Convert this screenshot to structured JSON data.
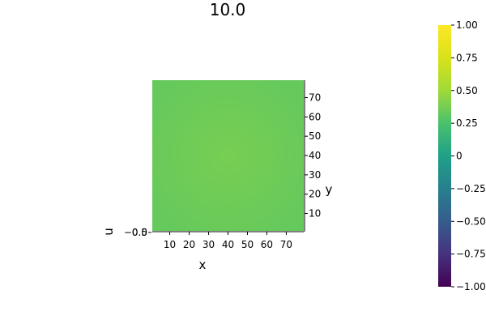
{
  "chart_data": {
    "type": "heatmap",
    "title": "10.0",
    "xlabel": "x",
    "ylabel": "y",
    "zlabel": "u",
    "x_ticks": [
      10,
      20,
      30,
      40,
      50,
      60,
      70
    ],
    "y_ticks": [
      10,
      20,
      30,
      40,
      50,
      60,
      70
    ],
    "z_ticks": [
      "−0.5",
      "0.0"
    ],
    "xlim": [
      1,
      79
    ],
    "ylim": [
      1,
      79
    ],
    "field": {
      "description": "nearly uniform field",
      "min_value": 0.33,
      "max_value": 0.38
    },
    "colorbar": {
      "colormap": "viridis",
      "range": [
        -1.0,
        1.0
      ],
      "ticks": [
        1.0,
        0.75,
        0.5,
        0.25,
        0,
        -0.25,
        -0.5,
        -0.75,
        -1.0
      ],
      "tick_labels": [
        "1.00",
        "0.75",
        "0.50",
        "0.25",
        "0",
        "−0.25",
        "−0.50",
        "−0.75",
        "−1.00"
      ]
    },
    "grid": false,
    "legend": "none"
  }
}
